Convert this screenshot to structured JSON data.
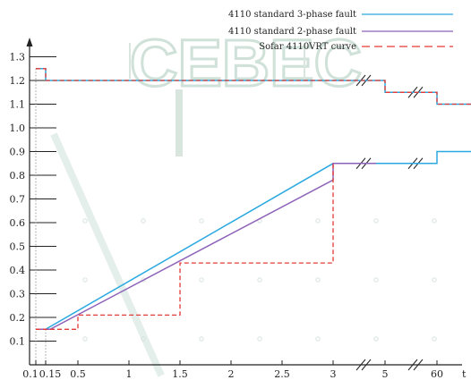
{
  "chart_data": {
    "type": "line",
    "title": "",
    "xlabel": "",
    "ylabel": "",
    "x_tick_labels": [
      "0.1",
      "0.15",
      "0.5",
      "1",
      "1.5",
      "2",
      "2.5",
      "3",
      "5",
      "60"
    ],
    "x_axis_end_label": "t",
    "y_ticks": [
      0.1,
      0.2,
      0.3,
      0.4,
      0.5,
      0.6,
      0.7,
      0.8,
      0.9,
      1.0,
      1.1,
      1.2,
      1.3
    ],
    "y_tick_labels": [
      "0.1",
      "0.2",
      "0.3",
      "0.4",
      "0.5",
      "0.6",
      "0.7",
      "0.8",
      "0.9",
      "1.0",
      "1.1",
      "1.2",
      "1.3"
    ],
    "ylim": [
      0,
      1.4
    ],
    "axis_breaks_x": [
      "3-5",
      "5-60"
    ],
    "legend_position": "top-right",
    "watermark": "CEBEC",
    "series": [
      {
        "name": "4110 standard 3-phase fault",
        "color": "#29a9e0",
        "style": "solid",
        "segments": [
          {
            "points": [
              [
                0.1,
                1.25
              ],
              [
                0.15,
                1.25
              ],
              [
                0.15,
                1.2
              ],
              [
                3,
                1.2
              ],
              [
                4,
                1.2
              ]
            ]
          },
          {
            "points": [
              [
                4,
                1.2
              ],
              [
                5,
                1.2
              ],
              [
                5,
                1.15
              ],
              [
                30,
                1.15
              ]
            ]
          },
          {
            "points": [
              [
                30,
                1.15
              ],
              [
                60,
                1.15
              ],
              [
                60,
                1.1
              ],
              [
                120,
                1.1
              ]
            ]
          },
          {
            "points": [
              [
                0.1,
                0.15
              ],
              [
                0.15,
                0.15
              ],
              [
                3,
                0.85
              ],
              [
                4,
                0.85
              ]
            ]
          },
          {
            "points": [
              [
                4,
                0.85
              ],
              [
                30,
                0.85
              ]
            ]
          },
          {
            "points": [
              [
                30,
                0.85
              ],
              [
                60,
                0.85
              ],
              [
                60,
                0.9
              ],
              [
                120,
                0.9
              ]
            ]
          }
        ]
      },
      {
        "name": "4110 standard 2-phase  fault",
        "color": "#8e62b8",
        "style": "solid",
        "segments": [
          {
            "points": [
              [
                0.1,
                0.15
              ],
              [
                0.2,
                0.15
              ],
              [
                3,
                0.78
              ],
              [
                3,
                0.85
              ],
              [
                4,
                0.85
              ]
            ]
          }
        ]
      },
      {
        "name": "Sofar 4110VRT curve",
        "color": "#e53935",
        "style": "dashed",
        "segments": [
          {
            "points": [
              [
                0.1,
                1.25
              ],
              [
                0.15,
                1.25
              ],
              [
                0.15,
                1.2
              ],
              [
                3,
                1.2
              ],
              [
                4,
                1.2
              ]
            ]
          },
          {
            "points": [
              [
                4,
                1.2
              ],
              [
                5,
                1.2
              ],
              [
                5,
                1.15
              ],
              [
                30,
                1.15
              ]
            ]
          },
          {
            "points": [
              [
                30,
                1.15
              ],
              [
                60,
                1.15
              ],
              [
                60,
                1.1
              ],
              [
                120,
                1.1
              ]
            ]
          },
          {
            "points": [
              [
                0.1,
                0.15
              ],
              [
                0.5,
                0.15
              ],
              [
                0.5,
                0.21
              ],
              [
                1.5,
                0.21
              ],
              [
                1.5,
                0.43
              ],
              [
                3,
                0.43
              ],
              [
                3,
                0.85
              ]
            ]
          }
        ]
      }
    ]
  }
}
